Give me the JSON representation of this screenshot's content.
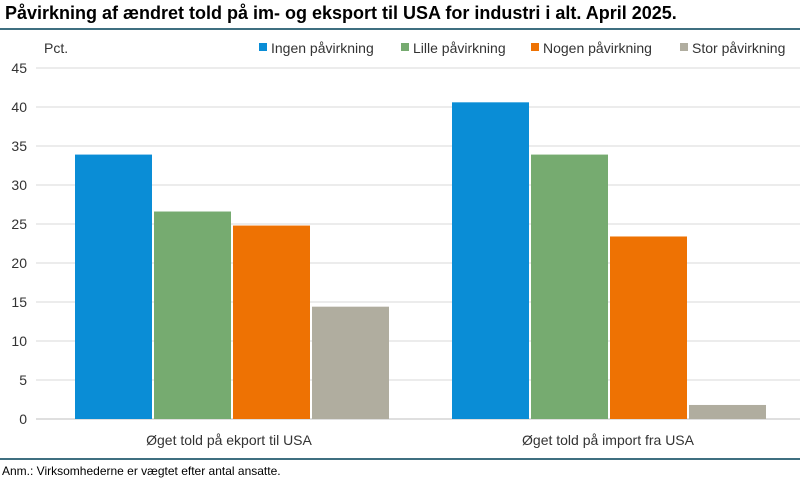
{
  "title": "Påvirkning af ændret told på im- og eksport til USA for industri i alt. April 2025.",
  "note": "Anm.: Virksomhederne er vægtet efter antal ansatte.",
  "chart_data": {
    "type": "bar",
    "ylabel": "Pct.",
    "ylim": [
      0,
      45
    ],
    "yticks": [
      0,
      5,
      10,
      15,
      20,
      25,
      30,
      35,
      40,
      45
    ],
    "grid": true,
    "legend_position": "top-right",
    "categories": [
      "Øget told på ekport til USA",
      "Øget told på import fra USA"
    ],
    "series": [
      {
        "name": "Ingen påvirkning",
        "color": "#0a8dd6",
        "values": [
          33.9,
          40.6
        ]
      },
      {
        "name": "Lille påvirkning",
        "color": "#76ab70",
        "values": [
          26.6,
          33.9
        ]
      },
      {
        "name": "Nogen påvirkning",
        "color": "#ee7203",
        "values": [
          24.8,
          23.4
        ]
      },
      {
        "name": "Stor påvirkning",
        "color": "#b0ad9f",
        "values": [
          14.4,
          1.8
        ]
      }
    ]
  }
}
